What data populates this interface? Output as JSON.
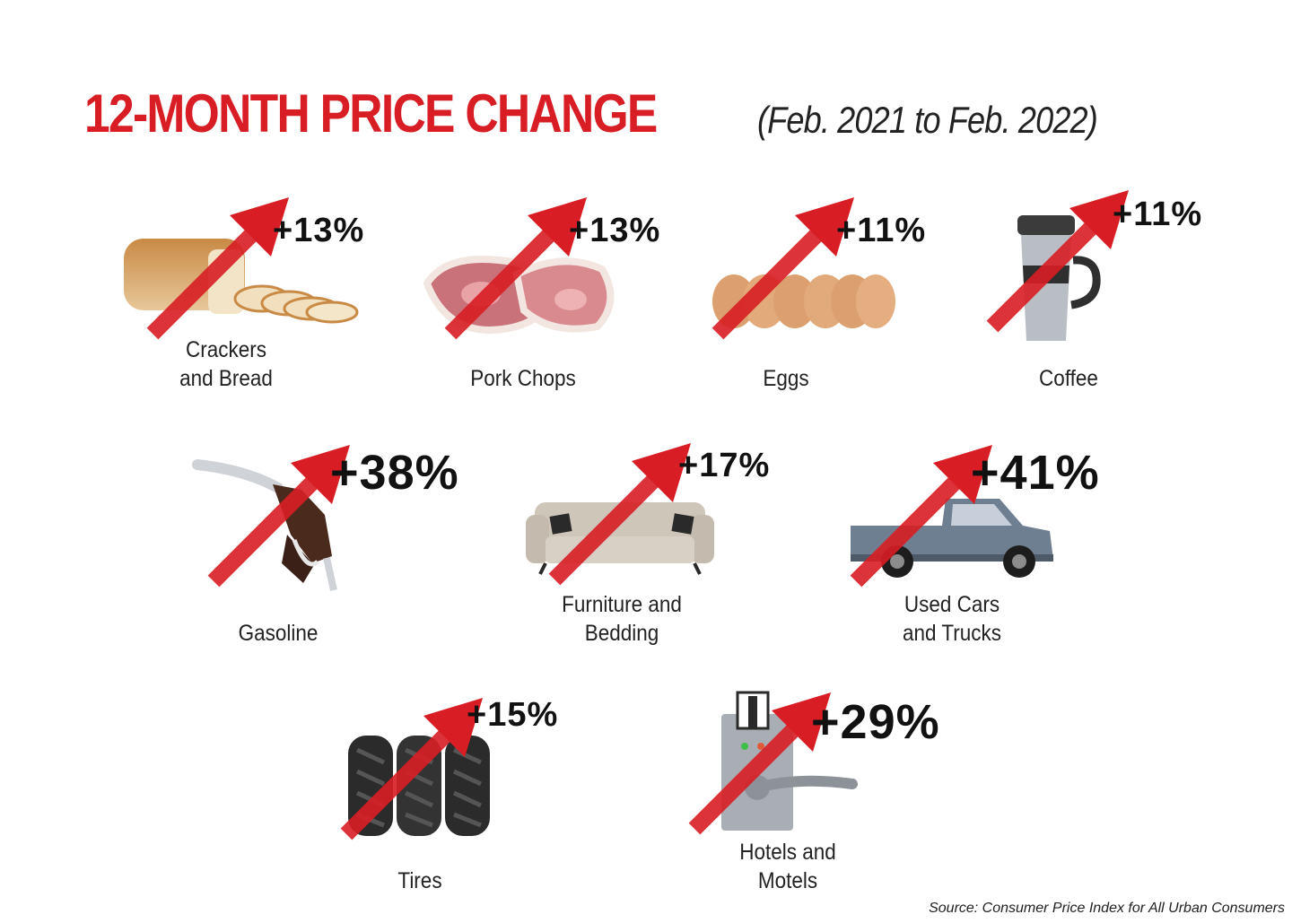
{
  "header": {
    "title": "12-MONTH PRICE CHANGE",
    "subtitle": "(Feb. 2021 to Feb. 2022)"
  },
  "colors": {
    "accent": "#d81e24",
    "text": "#222222"
  },
  "items": [
    {
      "label_lines": [
        "Crackers",
        "and Bread"
      ],
      "change": "+13%",
      "icon": "bread-icon"
    },
    {
      "label_lines": [
        "Pork Chops"
      ],
      "change": "+13%",
      "icon": "pork-chops-icon"
    },
    {
      "label_lines": [
        "Eggs"
      ],
      "change": "+11%",
      "icon": "eggs-icon"
    },
    {
      "label_lines": [
        "Coffee"
      ],
      "change": "+11%",
      "icon": "coffee-mug-icon"
    },
    {
      "label_lines": [
        "Gasoline"
      ],
      "change": "+38%",
      "icon": "gas-nozzle-icon"
    },
    {
      "label_lines": [
        "Furniture and",
        "Bedding"
      ],
      "change": "+17%",
      "icon": "sofa-icon"
    },
    {
      "label_lines": [
        "Used Cars",
        "and Trucks"
      ],
      "change": "+41%",
      "icon": "pickup-truck-icon"
    },
    {
      "label_lines": [
        "Tires"
      ],
      "change": "+15%",
      "icon": "tires-icon"
    },
    {
      "label_lines": [
        "Hotels and",
        "Motels"
      ],
      "change": "+29%",
      "icon": "hotel-door-lock-icon"
    }
  ],
  "source": "Source: Consumer Price Index for All Urban Consumers"
}
